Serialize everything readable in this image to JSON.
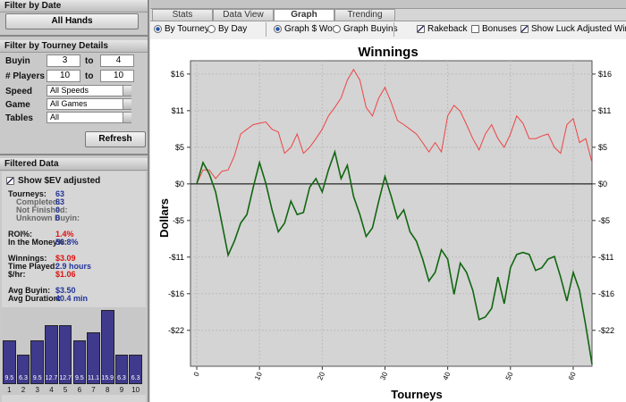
{
  "sidebar": {
    "filter_date": {
      "title": "Filter by Date",
      "button": "All Hands"
    },
    "filter_tourney": {
      "title": "Filter by Tourney Details",
      "ranges": [
        {
          "label": "Buyin",
          "from": "3",
          "to_label": "to",
          "to": "4"
        },
        {
          "label": "# Players",
          "from": "10",
          "to_label": "to",
          "to": "10"
        }
      ],
      "selects": [
        {
          "label": "Speed",
          "value": "All Speeds"
        },
        {
          "label": "Game",
          "value": "All Games"
        },
        {
          "label": "Tables",
          "value": "All"
        }
      ],
      "button": "Refresh"
    },
    "filtered_data": {
      "title": "Filtered Data",
      "checkbox": {
        "label": "Show $EV adjusted",
        "checked": true
      },
      "groups": [
        [
          {
            "label": "Tourneys:",
            "value": "63"
          },
          {
            "label": "Completed:",
            "value": "63",
            "indent": true
          },
          {
            "label": "Not Finished:",
            "value": "0",
            "indent": true
          },
          {
            "label": "Unknown Buyin:",
            "value": "0",
            "indent": true
          }
        ],
        [
          {
            "label": "ROI%:",
            "value": "1.4%",
            "color": "#e01010"
          },
          {
            "label": "In the Money%:",
            "value": "50.8%"
          }
        ],
        [
          {
            "label": "Winnings:",
            "value": "$3.09",
            "color": "#e01010"
          },
          {
            "label": "Time Played:",
            "value": "2.9 hours"
          },
          {
            "label": "$/hr:",
            "value": "$1.06",
            "color": "#e01010"
          }
        ],
        [
          {
            "label": "Avg Buyin:",
            "value": "$3.50"
          },
          {
            "label": "Avg Duration:",
            "value": "40.4 min"
          }
        ]
      ],
      "histogram": {
        "categories": [
          "1",
          "2",
          "3",
          "4",
          "5",
          "6",
          "7",
          "8",
          "9",
          "10"
        ],
        "values": [
          9.5,
          6.3,
          9.5,
          12.7,
          12.7,
          9.5,
          11.1,
          15.9,
          6.3,
          6.3
        ],
        "color": "#3f3a8c"
      }
    }
  },
  "tabs": [
    {
      "label": "Stats",
      "active": false
    },
    {
      "label": "Data View",
      "active": false
    },
    {
      "label": "Graph",
      "active": true
    },
    {
      "label": "Trending",
      "active": false
    }
  ],
  "options": {
    "radios": [
      [
        {
          "label": "By Tourney",
          "checked": true
        },
        {
          "label": "By Day",
          "checked": false
        }
      ],
      [
        {
          "label": "Graph $ Won",
          "checked": true
        },
        {
          "label": "Graph Buyins",
          "checked": false
        }
      ]
    ],
    "checkboxes": [
      {
        "label": "Rakeback",
        "checked": true
      },
      {
        "label": "Bonuses",
        "checked": false
      },
      {
        "label": "Show Luck Adjusted Winnings",
        "checked": true
      }
    ]
  },
  "chart_data": {
    "type": "line",
    "title": "Winnings",
    "x_label": "Tourneys",
    "y_label": "Dollars",
    "xlim": [
      -1,
      63
    ],
    "ylim": [
      -27.4,
      18.5
    ],
    "xticks": [
      0,
      10,
      20,
      30,
      40,
      50,
      60
    ],
    "yticks": [
      {
        "value": 16.5,
        "label": "$16"
      },
      {
        "value": 11,
        "label": "$11"
      },
      {
        "value": 5.5,
        "label": "$5"
      },
      {
        "value": 0,
        "label": "$0"
      },
      {
        "value": -5.5,
        "label": "-$5"
      },
      {
        "value": -11,
        "label": "-$11"
      },
      {
        "value": -16.5,
        "label": "-$16"
      },
      {
        "value": -22,
        "label": "-$22"
      }
    ],
    "grid": true,
    "x": [
      0,
      1,
      2,
      3,
      4,
      5,
      6,
      7,
      8,
      9,
      10,
      11,
      12,
      13,
      14,
      15,
      16,
      17,
      18,
      19,
      20,
      21,
      22,
      23,
      24,
      25,
      26,
      27,
      28,
      29,
      30,
      31,
      32,
      33,
      34,
      35,
      36,
      37,
      38,
      39,
      40,
      41,
      42,
      43,
      44,
      45,
      46,
      47,
      48,
      49,
      50,
      51,
      52,
      53,
      54,
      55,
      56,
      57,
      58,
      59,
      60,
      61,
      62,
      63
    ],
    "series": [
      {
        "color": "#ee4444",
        "values": [
          0,
          2.1,
          2.1,
          0.8,
          1.9,
          2.1,
          4.2,
          7.5,
          8.2,
          8.9,
          9.1,
          9.3,
          8.2,
          7.8,
          4.6,
          5.5,
          7.5,
          4.6,
          5.5,
          6.8,
          8.2,
          10.2,
          11.5,
          12.9,
          15.6,
          17.2,
          15.6,
          11.5,
          10.2,
          12.9,
          14.5,
          12.2,
          9.5,
          8.9,
          8.2,
          7.5,
          6.2,
          4.8,
          6.2,
          4.8,
          10.2,
          11.8,
          10.9,
          8.9,
          6.8,
          5.1,
          7.5,
          8.9,
          6.8,
          5.5,
          7.5,
          10.2,
          9.1,
          6.8,
          6.8,
          7.2,
          7.5,
          5.5,
          4.6,
          8.9,
          9.8,
          6.2,
          6.8,
          3.2
        ]
      },
      {
        "color": "#116611",
        "values": [
          0,
          3.2,
          1.5,
          -1.2,
          -5.9,
          -10.7,
          -8.6,
          -5.9,
          -4.6,
          -0.5,
          3.2,
          0.1,
          -3.9,
          -7.2,
          -5.9,
          -2.6,
          -4.6,
          -4.3,
          -0.5,
          0.8,
          -1.2,
          2.1,
          4.8,
          0.8,
          2.8,
          -1.9,
          -4.6,
          -7.9,
          -6.6,
          -2.6,
          1.1,
          -1.9,
          -5.2,
          -3.9,
          -7.2,
          -8.6,
          -11.3,
          -14.6,
          -13.3,
          -9.9,
          -11.3,
          -16.6,
          -11.9,
          -13.3,
          -16.0,
          -20.4,
          -20.0,
          -18.7,
          -14.0,
          -18.0,
          -12.6,
          -10.6,
          -10.3,
          -10.6,
          -13.0,
          -12.6,
          -11.3,
          -10.9,
          -14.0,
          -17.6,
          -13.3,
          -16.0,
          -21.3,
          -27.1
        ]
      }
    ]
  }
}
